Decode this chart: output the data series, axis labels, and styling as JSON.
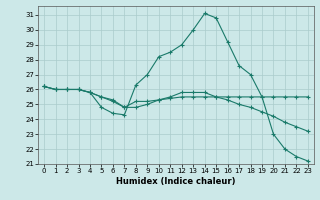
{
  "xlabel": "Humidex (Indice chaleur)",
  "background_color": "#cce8e8",
  "grid_color": "#aacccc",
  "line_color": "#1a7a6a",
  "xlim": [
    -0.5,
    23.5
  ],
  "ylim": [
    21,
    31.6
  ],
  "xticks": [
    0,
    1,
    2,
    3,
    4,
    5,
    6,
    7,
    8,
    9,
    10,
    11,
    12,
    13,
    14,
    15,
    16,
    17,
    18,
    19,
    20,
    21,
    22,
    23
  ],
  "yticks": [
    21,
    22,
    23,
    24,
    25,
    26,
    27,
    28,
    29,
    30,
    31
  ],
  "series": [
    [
      26.2,
      26.0,
      26.0,
      26.0,
      25.8,
      24.8,
      24.4,
      24.3,
      26.3,
      27.0,
      28.2,
      28.5,
      29.0,
      30.0,
      31.1,
      30.8,
      29.2,
      27.6,
      27.0,
      25.5,
      23.0,
      22.0,
      21.5,
      21.2
    ],
    [
      26.2,
      26.0,
      26.0,
      26.0,
      25.8,
      25.5,
      25.3,
      24.8,
      25.2,
      25.2,
      25.3,
      25.4,
      25.5,
      25.5,
      25.5,
      25.5,
      25.5,
      25.5,
      25.5,
      25.5,
      25.5,
      25.5,
      25.5,
      25.5
    ],
    [
      26.2,
      26.0,
      26.0,
      26.0,
      25.8,
      25.5,
      25.2,
      24.8,
      24.8,
      25.0,
      25.3,
      25.5,
      25.8,
      25.8,
      25.8,
      25.5,
      25.3,
      25.0,
      24.8,
      24.5,
      24.2,
      23.8,
      23.5,
      23.2
    ]
  ]
}
